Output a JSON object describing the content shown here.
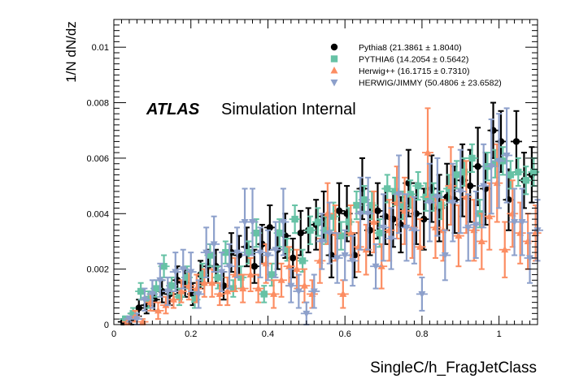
{
  "chart_data": {
    "type": "scatter",
    "title": "",
    "xlabel": "SingleC/h_FragJetClass",
    "ylabel": "1/N dN/dz",
    "xlim": [
      0,
      1.1
    ],
    "ylim": [
      0,
      0.011
    ],
    "x_ticks": [
      "0",
      "0.2",
      "0.4",
      "0.6",
      "0.8",
      "1"
    ],
    "y_ticks": [
      "0",
      "0.002",
      "0.004",
      "0.006",
      "0.008",
      "0.01"
    ],
    "grid": false,
    "legend_position": "top-right",
    "annotation_bold": "ATLAS",
    "annotation_text": "Simulation Internal",
    "series": [
      {
        "name": "Pythia8 (21.3861 ± 1.8040)",
        "color": "#000000",
        "marker": "circle",
        "x": [
          0.025,
          0.045,
          0.065,
          0.085,
          0.105,
          0.125,
          0.145,
          0.165,
          0.185,
          0.205,
          0.225,
          0.245,
          0.265,
          0.285,
          0.305,
          0.325,
          0.345,
          0.365,
          0.385,
          0.405,
          0.425,
          0.445,
          0.465,
          0.485,
          0.505,
          0.525,
          0.545,
          0.565,
          0.585,
          0.605,
          0.625,
          0.645,
          0.665,
          0.685,
          0.705,
          0.725,
          0.745,
          0.765,
          0.785,
          0.805,
          0.825,
          0.845,
          0.865,
          0.885,
          0.905,
          0.925,
          0.945,
          0.965,
          0.985,
          1.005,
          1.025,
          1.045,
          1.065,
          1.085
        ],
        "y": [
          0.0001,
          0.0002,
          0.0006,
          0.0007,
          0.0009,
          0.0012,
          0.0011,
          0.0016,
          0.0015,
          0.0011,
          0.0018,
          0.0021,
          0.0021,
          0.0014,
          0.0026,
          0.0025,
          0.0028,
          0.0021,
          0.0029,
          0.0035,
          0.0027,
          0.0032,
          0.0024,
          0.0033,
          0.0034,
          0.0036,
          0.0039,
          0.0025,
          0.0041,
          0.004,
          0.0025,
          0.0049,
          0.0034,
          0.0041,
          0.0039,
          0.0038,
          0.0036,
          0.0051,
          0.004,
          0.0038,
          0.0049,
          0.0042,
          0.0046,
          0.0045,
          0.0052,
          0.005,
          0.0057,
          0.0049,
          0.007,
          0.0066,
          0.0045,
          0.0066,
          0.0052,
          0.0054
        ],
        "err": [
          0.0001,
          0.0002,
          0.0003,
          0.0003,
          0.0004,
          0.0004,
          0.0004,
          0.0005,
          0.0005,
          0.0004,
          0.0005,
          0.0006,
          0.0006,
          0.0005,
          0.0007,
          0.0007,
          0.0007,
          0.0006,
          0.0007,
          0.0008,
          0.0007,
          0.0008,
          0.0007,
          0.0008,
          0.0008,
          0.0009,
          0.0009,
          0.0008,
          0.001,
          0.001,
          0.0008,
          0.0011,
          0.0009,
          0.001,
          0.001,
          0.001,
          0.001,
          0.0012,
          0.0011,
          0.0011,
          0.0012,
          0.0012,
          0.0012,
          0.0012,
          0.0013,
          0.0013,
          0.0014,
          0.0013,
          0.001,
          0.0011,
          0.0011,
          0.0011,
          0.001,
          0.001
        ]
      },
      {
        "name": "PYTHIA6 (14.2054 ± 0.5642)",
        "color": "#66c2a5",
        "marker": "square",
        "x": [
          0.03,
          0.05,
          0.07,
          0.09,
          0.11,
          0.13,
          0.15,
          0.17,
          0.19,
          0.21,
          0.23,
          0.25,
          0.27,
          0.29,
          0.31,
          0.33,
          0.35,
          0.37,
          0.39,
          0.41,
          0.43,
          0.45,
          0.47,
          0.49,
          0.51,
          0.53,
          0.55,
          0.57,
          0.59,
          0.61,
          0.63,
          0.65,
          0.67,
          0.69,
          0.71,
          0.73,
          0.75,
          0.77,
          0.79,
          0.81,
          0.83,
          0.85,
          0.87,
          0.89,
          0.91,
          0.93,
          0.95,
          0.97,
          0.99,
          1.01,
          1.03,
          1.05,
          1.07,
          1.09
        ],
        "y": [
          0.0002,
          0.0004,
          0.0012,
          0.0009,
          0.0013,
          0.0021,
          0.0014,
          0.001,
          0.0017,
          0.0009,
          0.0018,
          0.0025,
          0.0017,
          0.0026,
          0.0013,
          0.0017,
          0.0026,
          0.0033,
          0.0011,
          0.0018,
          0.0033,
          0.0027,
          0.0038,
          0.0023,
          0.0034,
          0.0037,
          0.0034,
          0.0039,
          0.0032,
          0.0037,
          0.0043,
          0.0045,
          0.0043,
          0.0033,
          0.0049,
          0.0048,
          0.0043,
          0.0047,
          0.005,
          0.0046,
          0.0046,
          0.0043,
          0.0049,
          0.0054,
          0.0055,
          0.006,
          0.004,
          0.0057,
          0.0058,
          0.0059,
          0.0054,
          0.0055,
          0.0052,
          0.0055
        ],
        "err": [
          0.0001,
          0.0002,
          0.0003,
          0.0003,
          0.0003,
          0.0004,
          0.0003,
          0.0003,
          0.0004,
          0.0003,
          0.0004,
          0.0004,
          0.0004,
          0.0004,
          0.0003,
          0.0004,
          0.0004,
          0.0005,
          0.0003,
          0.0004,
          0.0005,
          0.0004,
          0.0005,
          0.0004,
          0.0005,
          0.0005,
          0.0005,
          0.0005,
          0.0005,
          0.0005,
          0.0005,
          0.0005,
          0.0005,
          0.0005,
          0.0005,
          0.0005,
          0.0005,
          0.0005,
          0.0005,
          0.0005,
          0.0005,
          0.0005,
          0.0005,
          0.0005,
          0.0005,
          0.0005,
          0.0005,
          0.0005,
          0.0005,
          0.0005,
          0.0005,
          0.0005,
          0.0005,
          0.0005
        ]
      },
      {
        "name": "Herwig++ (16.1715 ± 0.7310)",
        "color": "#fc8d62",
        "marker": "triangle-up",
        "x": [
          0.035,
          0.055,
          0.075,
          0.095,
          0.115,
          0.135,
          0.155,
          0.175,
          0.195,
          0.215,
          0.235,
          0.255,
          0.275,
          0.295,
          0.315,
          0.335,
          0.355,
          0.375,
          0.395,
          0.415,
          0.435,
          0.455,
          0.475,
          0.495,
          0.515,
          0.535,
          0.555,
          0.575,
          0.595,
          0.615,
          0.635,
          0.655,
          0.675,
          0.695,
          0.715,
          0.735,
          0.755,
          0.775,
          0.795,
          0.815,
          0.835,
          0.855,
          0.875,
          0.895,
          0.915,
          0.935,
          0.955,
          0.975,
          0.995,
          1.015,
          1.035,
          1.055,
          1.075,
          1.095
        ],
        "y": [
          0.0001,
          0.0003,
          0.0001,
          0.0008,
          0.0005,
          0.0007,
          0.0009,
          0.0012,
          0.0014,
          0.0013,
          0.0015,
          0.0015,
          0.0011,
          0.0012,
          0.0018,
          0.0013,
          0.0018,
          0.0013,
          0.0022,
          0.0011,
          0.0016,
          0.0021,
          0.002,
          0.0014,
          0.0011,
          0.0023,
          0.004,
          0.0033,
          0.0011,
          0.0033,
          0.0028,
          0.0027,
          0.0037,
          0.0021,
          0.0034,
          0.0044,
          0.0041,
          0.0035,
          0.0028,
          0.0062,
          0.0035,
          0.0034,
          0.005,
          0.0032,
          0.0046,
          0.0034,
          0.003,
          0.0039,
          0.0051,
          0.0027,
          0.004,
          0.0033,
          0.003,
          0.0033
        ],
        "err": [
          0.0001,
          0.0002,
          0.0001,
          0.0003,
          0.0003,
          0.0003,
          0.0003,
          0.0004,
          0.0005,
          0.0005,
          0.0005,
          0.0005,
          0.0004,
          0.0005,
          0.0006,
          0.0005,
          0.0006,
          0.0005,
          0.0007,
          0.0005,
          0.0006,
          0.0007,
          0.0007,
          0.0006,
          0.0005,
          0.0008,
          0.0011,
          0.001,
          0.0005,
          0.001,
          0.0009,
          0.0009,
          0.0011,
          0.0008,
          0.0011,
          0.0013,
          0.0012,
          0.0011,
          0.001,
          0.0016,
          0.0011,
          0.0011,
          0.0014,
          0.0011,
          0.0013,
          0.0011,
          0.001,
          0.0012,
          0.0014,
          0.001,
          0.0012,
          0.0011,
          0.001,
          0.001
        ]
      },
      {
        "name": "HERWIG/JIMMY (50.4806 ± 23.6582)",
        "color": "#8da0cb",
        "marker": "triangle-down",
        "x": [
          0.04,
          0.06,
          0.08,
          0.1,
          0.12,
          0.14,
          0.16,
          0.18,
          0.2,
          0.22,
          0.24,
          0.26,
          0.28,
          0.3,
          0.32,
          0.34,
          0.36,
          0.38,
          0.4,
          0.42,
          0.44,
          0.46,
          0.48,
          0.5,
          0.52,
          0.54,
          0.56,
          0.58,
          0.6,
          0.62,
          0.64,
          0.66,
          0.68,
          0.7,
          0.72,
          0.74,
          0.76,
          0.78,
          0.8,
          0.82,
          0.84,
          0.86,
          0.88,
          0.9,
          0.92,
          0.94,
          0.96,
          0.98,
          1.0,
          1.02,
          1.04,
          1.06,
          1.08,
          1.1
        ],
        "y": [
          0.0002,
          0.0002,
          0.0009,
          0.0011,
          0.0016,
          0.0012,
          0.0019,
          0.002,
          0.0019,
          0.0011,
          0.0026,
          0.0029,
          0.0019,
          0.0021,
          0.0026,
          0.0037,
          0.0037,
          0.0026,
          0.0025,
          0.0027,
          0.0037,
          0.0014,
          0.0012,
          0.0004,
          0.0012,
          0.003,
          0.0033,
          0.0024,
          0.0025,
          0.0023,
          0.004,
          0.004,
          0.0021,
          0.0035,
          0.0031,
          0.0047,
          0.0035,
          0.0034,
          0.0011,
          0.0044,
          0.0046,
          0.0025,
          0.0044,
          0.0048,
          0.0035,
          0.0036,
          0.005,
          0.0057,
          0.0059,
          0.0061,
          0.0037,
          0.0037,
          0.0024,
          0.0034
        ],
        "err": [
          0.0001,
          0.0002,
          0.0004,
          0.0005,
          0.0006,
          0.0005,
          0.0007,
          0.0007,
          0.0007,
          0.0005,
          0.0009,
          0.001,
          0.0007,
          0.0008,
          0.0009,
          0.0012,
          0.0012,
          0.0009,
          0.0009,
          0.001,
          0.0012,
          0.0006,
          0.0006,
          0.0004,
          0.0006,
          0.001,
          0.0011,
          0.0009,
          0.0009,
          0.0009,
          0.0013,
          0.0013,
          0.0008,
          0.0012,
          0.0011,
          0.0014,
          0.0012,
          0.0012,
          0.0006,
          0.0014,
          0.0014,
          0.0009,
          0.0014,
          0.0015,
          0.0012,
          0.0012,
          0.0015,
          0.0017,
          0.0017,
          0.0017,
          0.0012,
          0.0012,
          0.0009,
          0.0011
        ]
      }
    ]
  }
}
